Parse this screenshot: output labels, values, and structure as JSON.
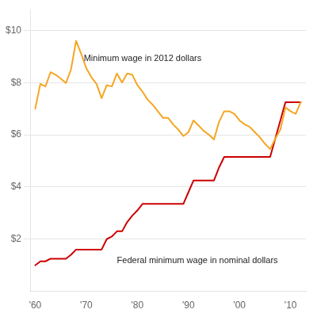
{
  "chart_data": {
    "type": "line",
    "x": [
      1960,
      1961,
      1962,
      1963,
      1964,
      1965,
      1966,
      1967,
      1968,
      1969,
      1970,
      1971,
      1972,
      1973,
      1974,
      1975,
      1976,
      1977,
      1978,
      1979,
      1980,
      1981,
      1982,
      1983,
      1984,
      1985,
      1986,
      1987,
      1988,
      1989,
      1990,
      1991,
      1992,
      1993,
      1994,
      1995,
      1996,
      1997,
      1998,
      1999,
      2000,
      2001,
      2002,
      2003,
      2004,
      2005,
      2006,
      2007,
      2008,
      2009,
      2010,
      2011,
      2012
    ],
    "series": [
      {
        "color": "#F5A623",
        "values": [
          7.0,
          7.95,
          7.85,
          8.4,
          8.3,
          8.15,
          7.98,
          8.5,
          9.6,
          9.1,
          8.55,
          8.2,
          7.95,
          7.4,
          7.9,
          7.85,
          8.35,
          8.0,
          8.35,
          8.3,
          7.9,
          7.65,
          7.35,
          7.15,
          6.9,
          6.65,
          6.65,
          6.4,
          6.2,
          5.95,
          6.1,
          6.55,
          6.35,
          6.15,
          6.0,
          5.82,
          6.5,
          6.9,
          6.9,
          6.8,
          6.55,
          6.4,
          6.3,
          6.1,
          5.9,
          5.65,
          5.45,
          5.85,
          6.2,
          7.05,
          6.9,
          6.8,
          7.25
        ]
      },
      {
        "color": "#CC0000",
        "values": [
          1.0,
          1.15,
          1.15,
          1.25,
          1.25,
          1.25,
          1.25,
          1.4,
          1.6,
          1.6,
          1.6,
          1.6,
          1.6,
          1.6,
          2.0,
          2.1,
          2.3,
          2.3,
          2.65,
          2.9,
          3.1,
          3.35,
          3.35,
          3.35,
          3.35,
          3.35,
          3.35,
          3.35,
          3.35,
          3.35,
          3.8,
          4.25,
          4.25,
          4.25,
          4.25,
          4.25,
          4.75,
          5.15,
          5.15,
          5.15,
          5.15,
          5.15,
          5.15,
          5.15,
          5.15,
          5.15,
          5.15,
          5.85,
          6.55,
          7.25,
          7.25,
          7.25,
          7.25
        ]
      }
    ],
    "xlim": [
      1959,
      2013
    ],
    "xticks": [
      {
        "value": 1960,
        "label": "'60"
      },
      {
        "value": 1970,
        "label": "'70"
      },
      {
        "value": 1980,
        "label": "'80"
      },
      {
        "value": 1990,
        "label": "'90"
      },
      {
        "value": 2000,
        "label": "'00"
      },
      {
        "value": 2010,
        "label": "'10"
      }
    ],
    "ylim": [
      0,
      10.8
    ],
    "yticks": [
      {
        "value": 2,
        "label": "$2"
      },
      {
        "value": 4,
        "label": "$4"
      },
      {
        "value": 6,
        "label": "$6"
      },
      {
        "value": 8,
        "label": "$8"
      },
      {
        "value": 10,
        "label": "$10"
      }
    ],
    "grid": "y",
    "annotations": [
      {
        "text": "Minimum wage in 2012 dollars",
        "x": 1969.5,
        "y": 8.75
      },
      {
        "text": "Federal minimum wage in nominal dollars",
        "x": 1976,
        "y": 1.35
      }
    ]
  }
}
